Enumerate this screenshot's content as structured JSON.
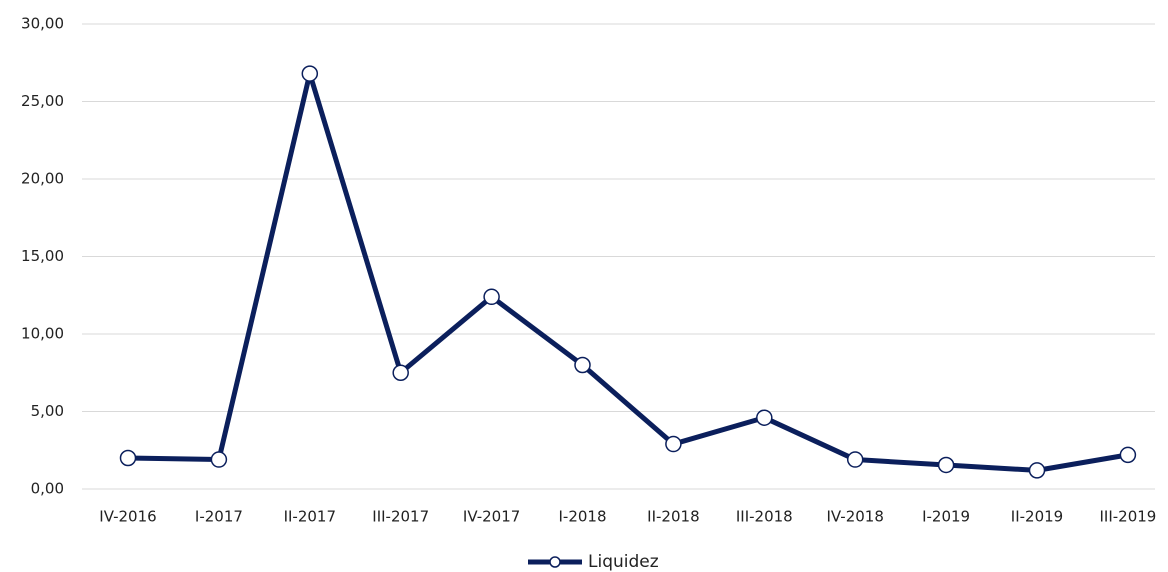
{
  "chart_data": {
    "type": "line",
    "categories": [
      "IV-2016",
      "I-2017",
      "II-2017",
      "III-2017",
      "IV-2017",
      "I-2018",
      "II-2018",
      "III-2018",
      "IV-2018",
      "I-2019",
      "II-2019",
      "III-2019"
    ],
    "series": [
      {
        "name": "Liquidez",
        "color": "#0b1f5c",
        "values": [
          2.0,
          1.9,
          26.8,
          7.5,
          12.4,
          8.0,
          2.9,
          4.6,
          1.9,
          1.55,
          1.2,
          2.2
        ]
      }
    ],
    "ylim": [
      0,
      30
    ],
    "yticks": [
      {
        "value": 0,
        "label": "0,00"
      },
      {
        "value": 5,
        "label": "5,00"
      },
      {
        "value": 10,
        "label": "10,00"
      },
      {
        "value": 15,
        "label": "15,00"
      },
      {
        "value": 20,
        "label": "20,00"
      },
      {
        "value": 25,
        "label": "25,00"
      },
      {
        "value": 30,
        "label": "30,00"
      }
    ],
    "grid": true,
    "legend": "bottom"
  }
}
